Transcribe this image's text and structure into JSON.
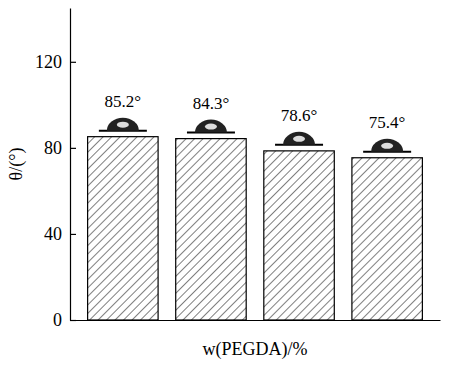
{
  "chart_data": {
    "type": "bar",
    "categories": [
      null,
      null,
      null,
      null
    ],
    "values": [
      85.2,
      84.3,
      78.6,
      75.4
    ],
    "value_labels": [
      "85.2°",
      "84.3°",
      "78.6°",
      "75.4°"
    ],
    "data_labels": true,
    "color": "#000000",
    "xlabel": "w(PEGDA)/%",
    "ylabel": "θ/(°)",
    "ylim": [
      0,
      145
    ],
    "yticks": [
      0,
      40,
      80,
      120
    ]
  }
}
